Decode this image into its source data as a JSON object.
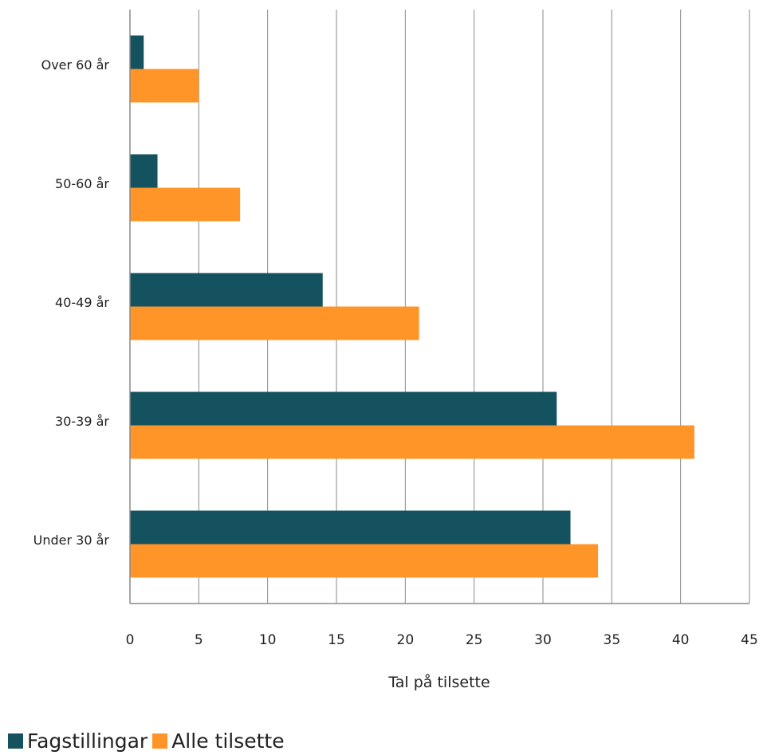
{
  "chart_data": {
    "type": "bar",
    "orientation": "horizontal",
    "categories": [
      "Over 60 år",
      "50-60 år",
      "40-49 år",
      "30-39 år",
      "Under 30 år"
    ],
    "series": [
      {
        "name": "Fagstillingar",
        "color": "#13525e",
        "values": [
          1,
          2,
          14,
          31,
          32
        ]
      },
      {
        "name": "Alle tilsette",
        "color": "#ff9528",
        "values": [
          5,
          8,
          21,
          41,
          34
        ]
      }
    ],
    "xlabel": "Tal på tilsette",
    "ylabel": "",
    "xlim": [
      0,
      45
    ],
    "xticks": [
      "0",
      "5",
      "10",
      "15",
      "20",
      "25",
      "30",
      "35",
      "40",
      "45"
    ],
    "grid": true,
    "legend_position": "bottom-left"
  }
}
